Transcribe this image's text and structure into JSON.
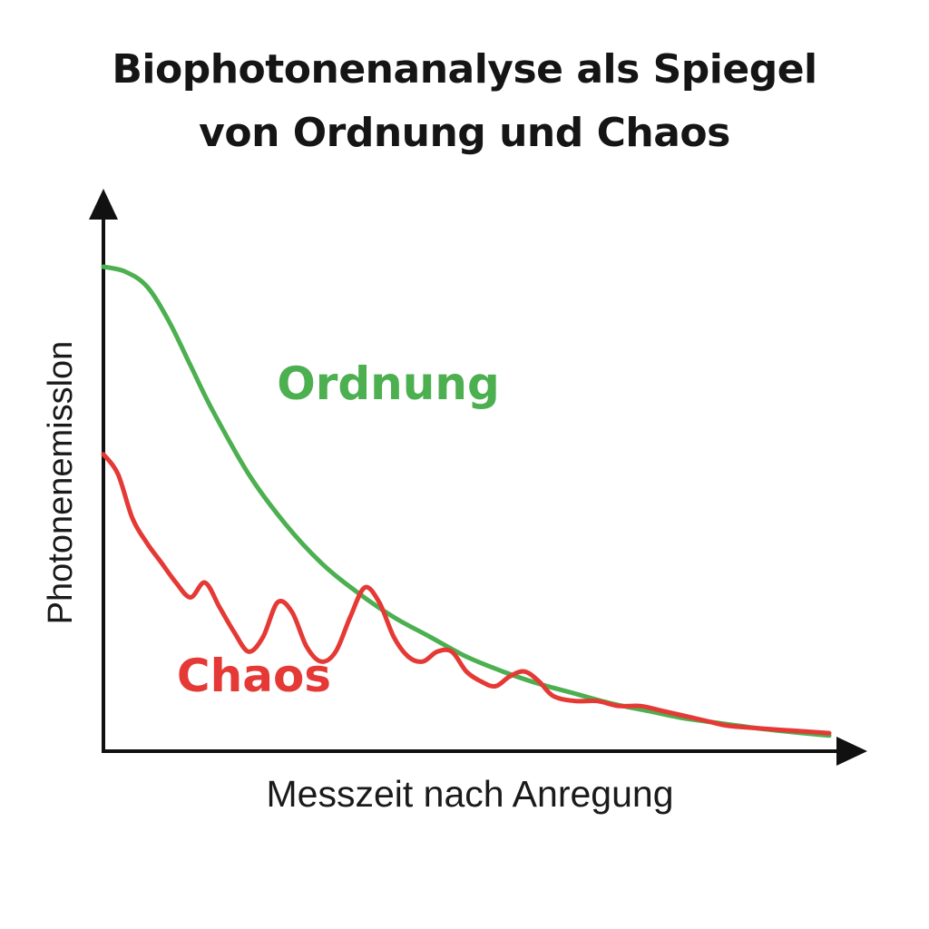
{
  "chart_data": {
    "type": "line",
    "title": "Biophotonenanalyse als Spiegel von Ordnung und Chaos",
    "title_lines": [
      "Biophotonenanalyse als Spiegel",
      "von Ordnung und Chaos"
    ],
    "xlabel": "Messzeit nach Anregung",
    "ylabel": "Photonenemisslon",
    "xlim": [
      0,
      100
    ],
    "ylim": [
      0,
      100
    ],
    "grid": false,
    "axes_arrows": true,
    "series": [
      {
        "name": "Ordnung",
        "color": "#4caf50",
        "x": [
          0,
          3,
          6,
          9,
          12,
          15,
          20,
          25,
          30,
          35,
          40,
          45,
          50,
          55,
          60,
          65,
          70,
          75,
          80,
          85,
          90,
          95,
          100
        ],
        "y": [
          100,
          99,
          96,
          89,
          80,
          71,
          58,
          48,
          40,
          34,
          29,
          25,
          21,
          18,
          15.5,
          13.5,
          11.5,
          10,
          8.5,
          7.5,
          6.5,
          5.7,
          5
        ]
      },
      {
        "name": "Chaos",
        "color": "#e53935",
        "x": [
          0,
          2,
          4,
          6,
          8,
          10,
          12,
          14,
          16,
          18,
          20,
          22,
          24,
          26,
          28,
          30,
          32,
          34,
          36,
          38,
          40,
          42,
          44,
          46,
          48,
          50,
          52,
          54,
          56,
          58,
          60,
          62,
          65,
          68,
          71,
          74,
          77,
          80,
          83,
          86,
          90,
          95,
          100
        ],
        "y": [
          62,
          58,
          49,
          44,
          40,
          36,
          33,
          36,
          31,
          26,
          22,
          25,
          32,
          30,
          23,
          20,
          22,
          29,
          35,
          32,
          25,
          21,
          20,
          22,
          22,
          18,
          16,
          15,
          17,
          18,
          16,
          13,
          12,
          12,
          11,
          11,
          10,
          9,
          8,
          7,
          6.5,
          6,
          5.5
        ]
      }
    ]
  }
}
